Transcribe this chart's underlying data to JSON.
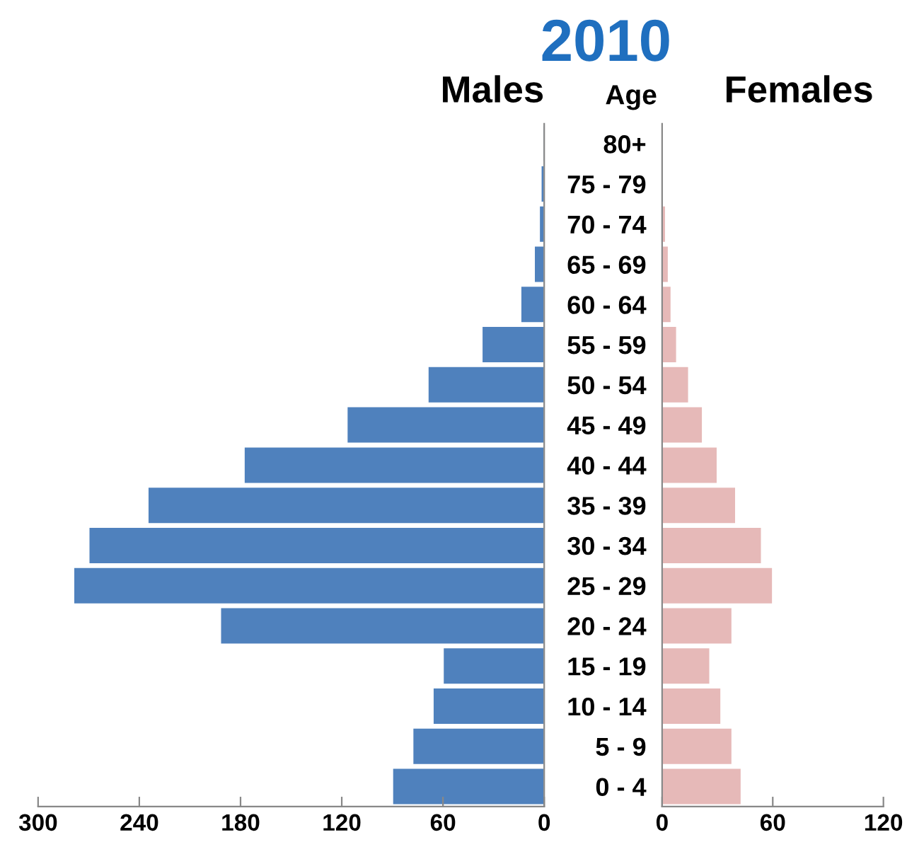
{
  "chart_data": [
    {
      "type": "bar",
      "orientation": "horizontal",
      "title": "Males",
      "annotations": [
        "2010"
      ],
      "categories": [
        null,
        null,
        null,
        null,
        null,
        null,
        null,
        null,
        null,
        null,
        null,
        null,
        null,
        null,
        null,
        null,
        null
      ],
      "series": [
        {
          "color": "#4f81bd",
          "values": [
            1,
            2,
            3,
            6,
            14,
            37,
            69,
            117,
            178,
            235,
            270,
            279,
            192,
            60,
            66,
            78,
            90
          ]
        }
      ],
      "xlim": [
        300,
        0
      ],
      "xticks": [
        300,
        240,
        180,
        120,
        60,
        0
      ],
      "tick_labels": "x",
      "grid": false,
      "legend": false
    },
    {
      "type": "bar",
      "orientation": "horizontal",
      "title": "Females",
      "ylabel": "Age",
      "categories": [
        "80+",
        "75 - 79",
        "70 - 74",
        "65 - 69",
        "60 - 64",
        "55 - 59",
        "50 - 54",
        "45 - 49",
        "40 - 44",
        "35 - 39",
        "30 - 34",
        "25 - 29",
        "20 - 24",
        "15 - 19",
        "10 - 14",
        "5 - 9",
        "0 - 4"
      ],
      "series": [
        {
          "color": "#e6b9b8",
          "values": [
            null,
            null,
            2,
            3.5,
            5,
            8,
            14.5,
            22,
            30,
            40,
            54,
            60,
            38,
            26,
            32,
            38,
            43
          ]
        }
      ],
      "xlim": [
        0,
        120
      ],
      "xticks": [
        0,
        60,
        120
      ],
      "grid": false,
      "legend": false
    }
  ]
}
